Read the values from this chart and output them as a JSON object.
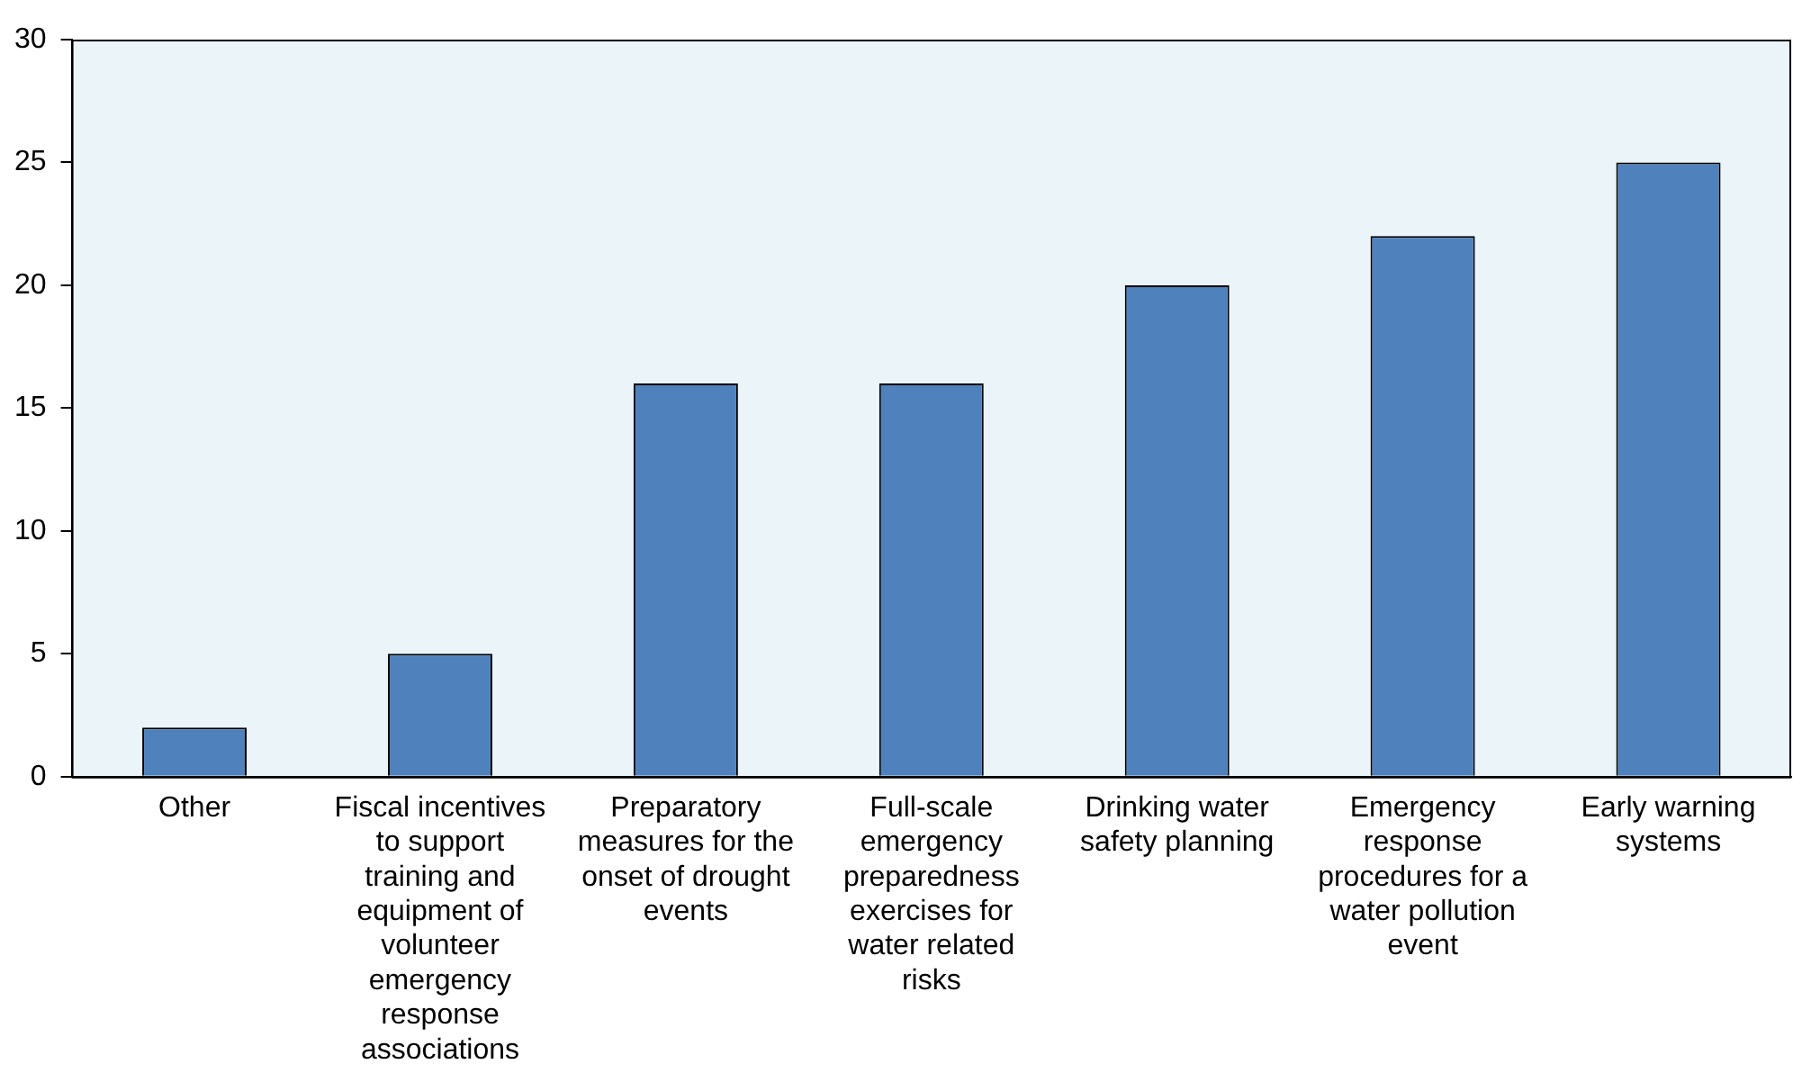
{
  "chart_data": {
    "type": "bar",
    "categories": [
      "Other",
      "Fiscal incentives to support training and equipment of volunteer emergency response associations",
      "Preparatory measures for the onset of drought events",
      "Full-scale emergency preparedness exercises for water related risks",
      "Drinking water safety planning",
      "Emergency response procedures for a water pollution event",
      "Early warning systems"
    ],
    "values": [
      2,
      5,
      16,
      16,
      20,
      22,
      25
    ],
    "color": "#4f81bd",
    "ylim": [
      0,
      30
    ],
    "yticks": [
      0,
      5,
      10,
      15,
      20,
      25,
      30
    ],
    "grid": false,
    "legend": false
  }
}
